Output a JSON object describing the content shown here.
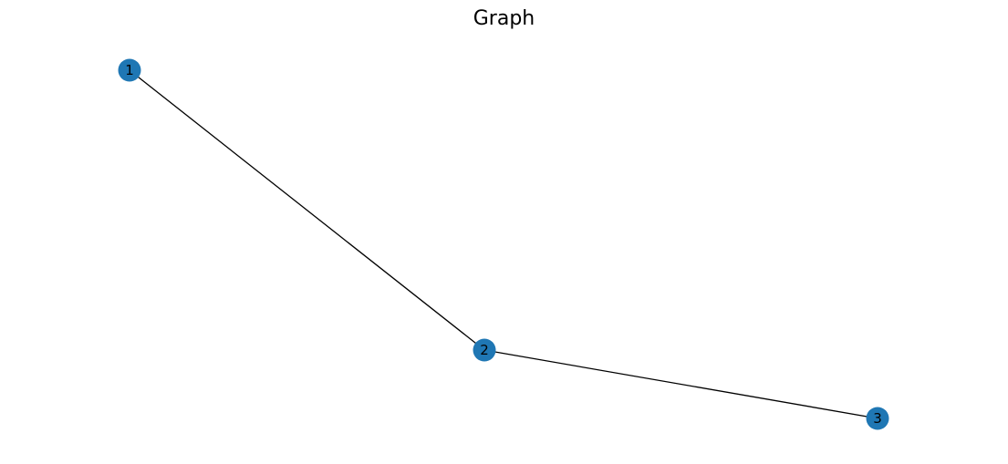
{
  "title": "Graph",
  "style": {
    "node_color": "#1f77b4",
    "edge_color": "#000000"
  },
  "graph": {
    "nodes": [
      {
        "id": "1",
        "label": "1"
      },
      {
        "id": "2",
        "label": "2"
      },
      {
        "id": "3",
        "label": "3"
      }
    ],
    "edges": [
      {
        "source": "1",
        "target": "2"
      },
      {
        "source": "2",
        "target": "3"
      }
    ]
  }
}
